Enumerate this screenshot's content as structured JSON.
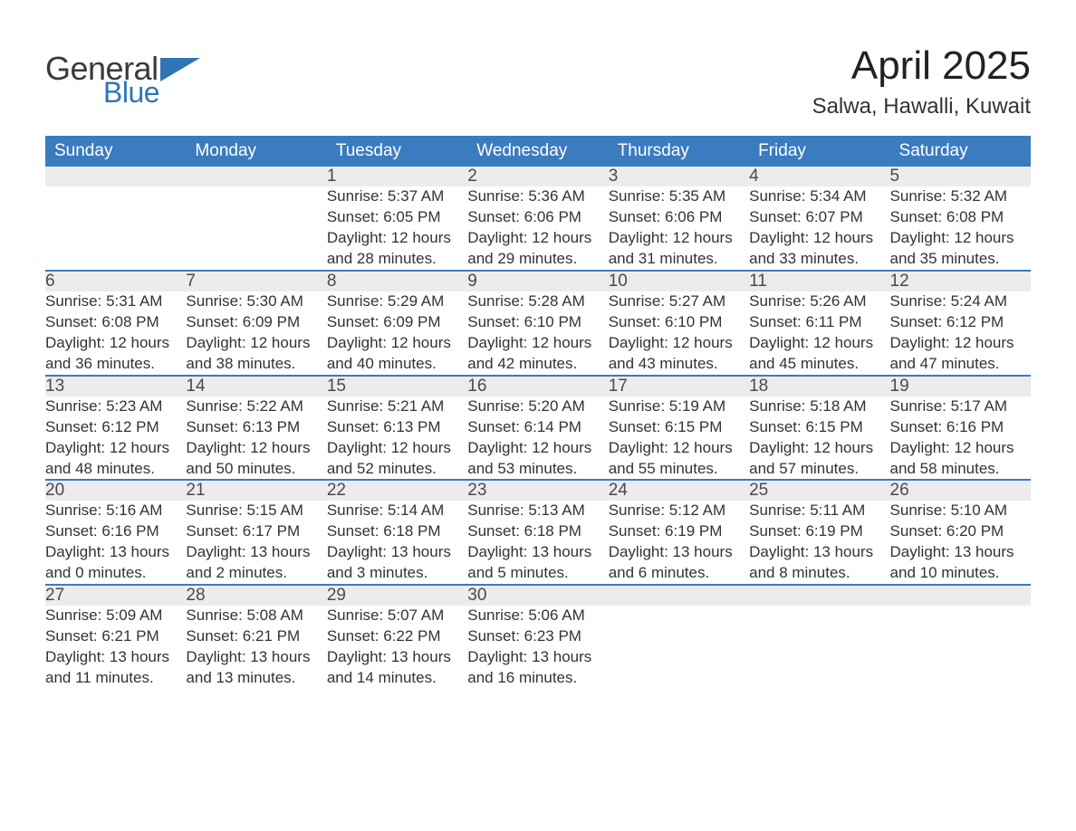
{
  "logo": {
    "text1": "General",
    "text2": "Blue",
    "tri_color": "#2e75b6"
  },
  "title": "April 2025",
  "subtitle": "Salwa, Hawalli, Kuwait",
  "colors": {
    "header_bg": "#3b7bbf",
    "header_text": "#ffffff",
    "daynum_bg": "#ececec",
    "row_border": "#3b7bbf",
    "body_text": "#333333",
    "logo_blue": "#2e75b6",
    "logo_gray": "#3a3a3a"
  },
  "typography": {
    "title_fontsize": 44,
    "subtitle_fontsize": 24,
    "header_fontsize": 19,
    "daynum_fontsize": 19,
    "detail_fontsize": 17
  },
  "weekdays": [
    "Sunday",
    "Monday",
    "Tuesday",
    "Wednesday",
    "Thursday",
    "Friday",
    "Saturday"
  ],
  "weeks": [
    [
      null,
      null,
      {
        "n": "1",
        "sr": "5:37 AM",
        "ss": "6:05 PM",
        "dl": "12 hours and 28 minutes."
      },
      {
        "n": "2",
        "sr": "5:36 AM",
        "ss": "6:06 PM",
        "dl": "12 hours and 29 minutes."
      },
      {
        "n": "3",
        "sr": "5:35 AM",
        "ss": "6:06 PM",
        "dl": "12 hours and 31 minutes."
      },
      {
        "n": "4",
        "sr": "5:34 AM",
        "ss": "6:07 PM",
        "dl": "12 hours and 33 minutes."
      },
      {
        "n": "5",
        "sr": "5:32 AM",
        "ss": "6:08 PM",
        "dl": "12 hours and 35 minutes."
      }
    ],
    [
      {
        "n": "6",
        "sr": "5:31 AM",
        "ss": "6:08 PM",
        "dl": "12 hours and 36 minutes."
      },
      {
        "n": "7",
        "sr": "5:30 AM",
        "ss": "6:09 PM",
        "dl": "12 hours and 38 minutes."
      },
      {
        "n": "8",
        "sr": "5:29 AM",
        "ss": "6:09 PM",
        "dl": "12 hours and 40 minutes."
      },
      {
        "n": "9",
        "sr": "5:28 AM",
        "ss": "6:10 PM",
        "dl": "12 hours and 42 minutes."
      },
      {
        "n": "10",
        "sr": "5:27 AM",
        "ss": "6:10 PM",
        "dl": "12 hours and 43 minutes."
      },
      {
        "n": "11",
        "sr": "5:26 AM",
        "ss": "6:11 PM",
        "dl": "12 hours and 45 minutes."
      },
      {
        "n": "12",
        "sr": "5:24 AM",
        "ss": "6:12 PM",
        "dl": "12 hours and 47 minutes."
      }
    ],
    [
      {
        "n": "13",
        "sr": "5:23 AM",
        "ss": "6:12 PM",
        "dl": "12 hours and 48 minutes."
      },
      {
        "n": "14",
        "sr": "5:22 AM",
        "ss": "6:13 PM",
        "dl": "12 hours and 50 minutes."
      },
      {
        "n": "15",
        "sr": "5:21 AM",
        "ss": "6:13 PM",
        "dl": "12 hours and 52 minutes."
      },
      {
        "n": "16",
        "sr": "5:20 AM",
        "ss": "6:14 PM",
        "dl": "12 hours and 53 minutes."
      },
      {
        "n": "17",
        "sr": "5:19 AM",
        "ss": "6:15 PM",
        "dl": "12 hours and 55 minutes."
      },
      {
        "n": "18",
        "sr": "5:18 AM",
        "ss": "6:15 PM",
        "dl": "12 hours and 57 minutes."
      },
      {
        "n": "19",
        "sr": "5:17 AM",
        "ss": "6:16 PM",
        "dl": "12 hours and 58 minutes."
      }
    ],
    [
      {
        "n": "20",
        "sr": "5:16 AM",
        "ss": "6:16 PM",
        "dl": "13 hours and 0 minutes."
      },
      {
        "n": "21",
        "sr": "5:15 AM",
        "ss": "6:17 PM",
        "dl": "13 hours and 2 minutes."
      },
      {
        "n": "22",
        "sr": "5:14 AM",
        "ss": "6:18 PM",
        "dl": "13 hours and 3 minutes."
      },
      {
        "n": "23",
        "sr": "5:13 AM",
        "ss": "6:18 PM",
        "dl": "13 hours and 5 minutes."
      },
      {
        "n": "24",
        "sr": "5:12 AM",
        "ss": "6:19 PM",
        "dl": "13 hours and 6 minutes."
      },
      {
        "n": "25",
        "sr": "5:11 AM",
        "ss": "6:19 PM",
        "dl": "13 hours and 8 minutes."
      },
      {
        "n": "26",
        "sr": "5:10 AM",
        "ss": "6:20 PM",
        "dl": "13 hours and 10 minutes."
      }
    ],
    [
      {
        "n": "27",
        "sr": "5:09 AM",
        "ss": "6:21 PM",
        "dl": "13 hours and 11 minutes."
      },
      {
        "n": "28",
        "sr": "5:08 AM",
        "ss": "6:21 PM",
        "dl": "13 hours and 13 minutes."
      },
      {
        "n": "29",
        "sr": "5:07 AM",
        "ss": "6:22 PM",
        "dl": "13 hours and 14 minutes."
      },
      {
        "n": "30",
        "sr": "5:06 AM",
        "ss": "6:23 PM",
        "dl": "13 hours and 16 minutes."
      },
      null,
      null,
      null
    ]
  ],
  "labels": {
    "sunrise": "Sunrise: ",
    "sunset": "Sunset: ",
    "daylight": "Daylight: "
  }
}
